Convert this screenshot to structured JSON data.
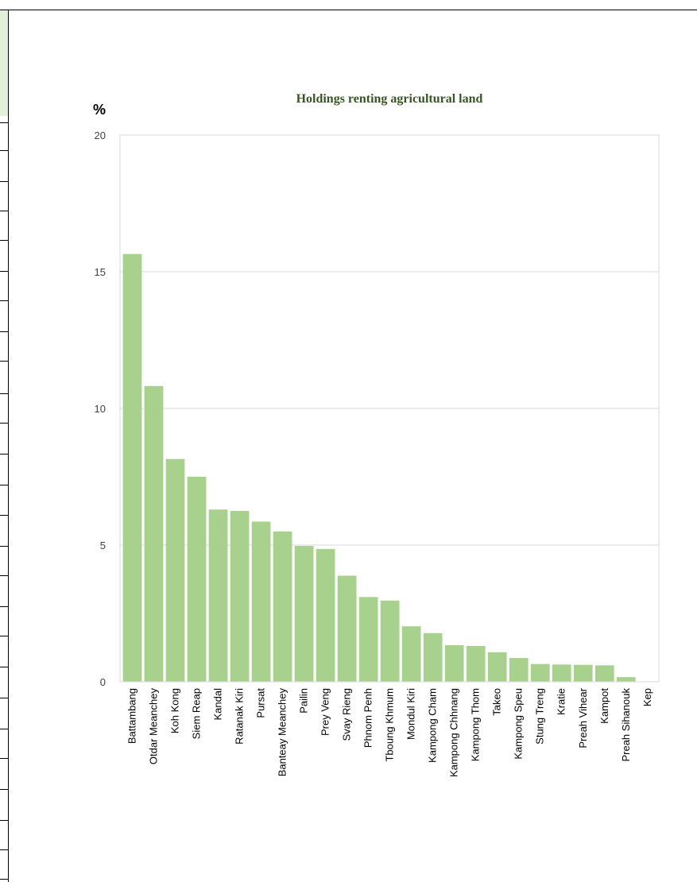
{
  "chart_data": {
    "type": "bar",
    "title": "Holdings renting agricultural land",
    "ylabel": "%",
    "xlabel": "",
    "ylim": [
      0,
      20
    ],
    "yticks": [
      "0",
      "5",
      "10",
      "15",
      "20"
    ],
    "grid": true,
    "bar_color": "#a9d18e",
    "title_color": "#375623",
    "categories": [
      "Battambang",
      "Otdar Meanchey",
      "Koh Kong",
      "Siem Reap",
      "Kandal",
      "Ratanak Kiri",
      "Pursat",
      "Banteay Meanchey",
      "Pailin",
      "Prey Veng",
      "Svay Rieng",
      "Phnom Penh",
      "Tboung Khmum",
      "Mondul Kiri",
      "Kampong Cham",
      "Kampong Chhnang",
      "Kampong Thom",
      "Takeo",
      "Kampong Speu",
      "Stung Treng",
      "Kratie",
      "Preah Vihear",
      "Kampot",
      "Preah Sihanouk",
      "Kep"
    ],
    "values": [
      15.65,
      10.82,
      8.15,
      7.5,
      6.3,
      6.25,
      5.86,
      5.5,
      4.97,
      4.86,
      3.88,
      3.1,
      2.97,
      2.03,
      1.78,
      1.34,
      1.31,
      1.08,
      0.87,
      0.65,
      0.63,
      0.62,
      0.6,
      0.17,
      0.0
    ]
  }
}
